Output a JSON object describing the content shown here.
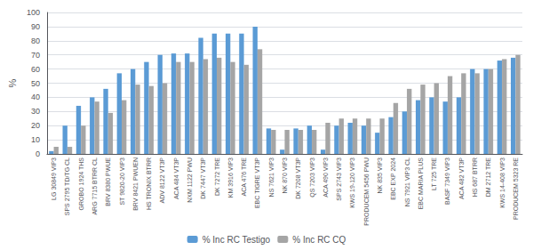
{
  "chart_data": {
    "type": "bar",
    "categories": [
      "LG 30849 VIP3",
      "SPS 2795 TD/TG CL",
      "GROBO 1924 THS",
      "ARG 7715 BTRR CL",
      "BRV 8380 PWUE",
      "ST 9820-20 VIP3",
      "BRV 8421 PWUEN",
      "HS TRONIX BTRR",
      "ADV 8122 VT3P",
      "ACA 484 VT3P",
      "NXM 1122 PWU",
      "DK 7447 VT3P",
      "DK 7272 TRE",
      "KM 3916 VIP3",
      "ACA 476 TRE",
      "EBC TIGRE VT3P",
      "NS 7621 VIP3",
      "NK 870 VIP3",
      "DK 7208 VT3P",
      "QS 7203 VIP3",
      "ACA 490 VIP3",
      "SPS 2743 VIP3",
      "KWS 19-120 VIP3",
      "PRODUCEM 5456 PWU",
      "NK 835 VIP3",
      "EBC EXP 2024",
      "NS 7921 VIP3 CL",
      "EBC MARIA PLUS",
      "LT 725 TRE",
      "BASF 7349 VIP3",
      "ACA 482 VT3P",
      "HS 687 BTRR",
      "DM 2712 TRE",
      "KWS 14-408 VIP3",
      "PRODUCEM 5323 RE"
    ],
    "series": [
      {
        "name": "% Inc RC Testigo",
        "color": "#5B9BD5",
        "values": [
          2,
          20,
          34,
          40,
          46,
          57,
          60,
          65,
          70,
          71,
          71,
          82,
          85,
          85,
          85,
          90,
          18,
          3,
          18,
          20,
          3,
          20,
          22,
          20,
          15,
          26,
          30,
          38,
          40,
          37,
          40,
          60,
          60,
          66,
          68
        ]
      },
      {
        "name": "% Inc RC CQ",
        "color": "#A5A5A5",
        "values": [
          5,
          5,
          20,
          37,
          29,
          38,
          49,
          48,
          50,
          65,
          65,
          67,
          68,
          65,
          63,
          74,
          17,
          17,
          17,
          17,
          22,
          25,
          25,
          25,
          25,
          36,
          46,
          49,
          50,
          55,
          57,
          57,
          60,
          67,
          70
        ]
      }
    ],
    "ylabel": "%",
    "ylim": [
      0,
      100
    ],
    "yticks": [
      0,
      10,
      20,
      30,
      40,
      50,
      60,
      70,
      80,
      90,
      100
    ],
    "grid": true,
    "legend": "bottom"
  }
}
